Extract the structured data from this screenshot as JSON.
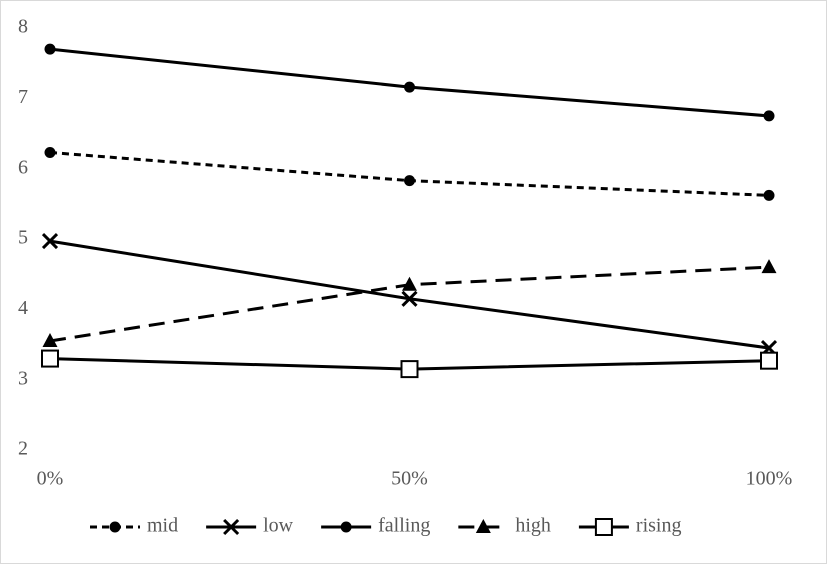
{
  "chart_data": {
    "type": "line",
    "categories": [
      "0%",
      "50%",
      "100%"
    ],
    "ylim": [
      2,
      8
    ],
    "yticks": [
      2,
      3,
      4,
      5,
      6,
      7,
      8
    ],
    "legend": "bottom",
    "series": [
      {
        "name": "mid",
        "color": "#000000",
        "dash": "short",
        "marker": "circle",
        "values": [
          6.23,
          5.83,
          5.62
        ]
      },
      {
        "name": "low",
        "color": "#000000",
        "dash": "solid",
        "marker": "x",
        "values": [
          4.97,
          4.15,
          3.45
        ]
      },
      {
        "name": "falling",
        "color": "#000000",
        "dash": "solid",
        "marker": "circle",
        "values": [
          7.7,
          7.16,
          6.75
        ]
      },
      {
        "name": "high",
        "color": "#000000",
        "dash": "long",
        "marker": "triangle",
        "values": [
          3.55,
          4.35,
          4.6
        ]
      },
      {
        "name": "rising",
        "color": "#000000",
        "dash": "solid",
        "marker": "open-square",
        "values": [
          3.3,
          3.15,
          3.27
        ]
      }
    ]
  }
}
